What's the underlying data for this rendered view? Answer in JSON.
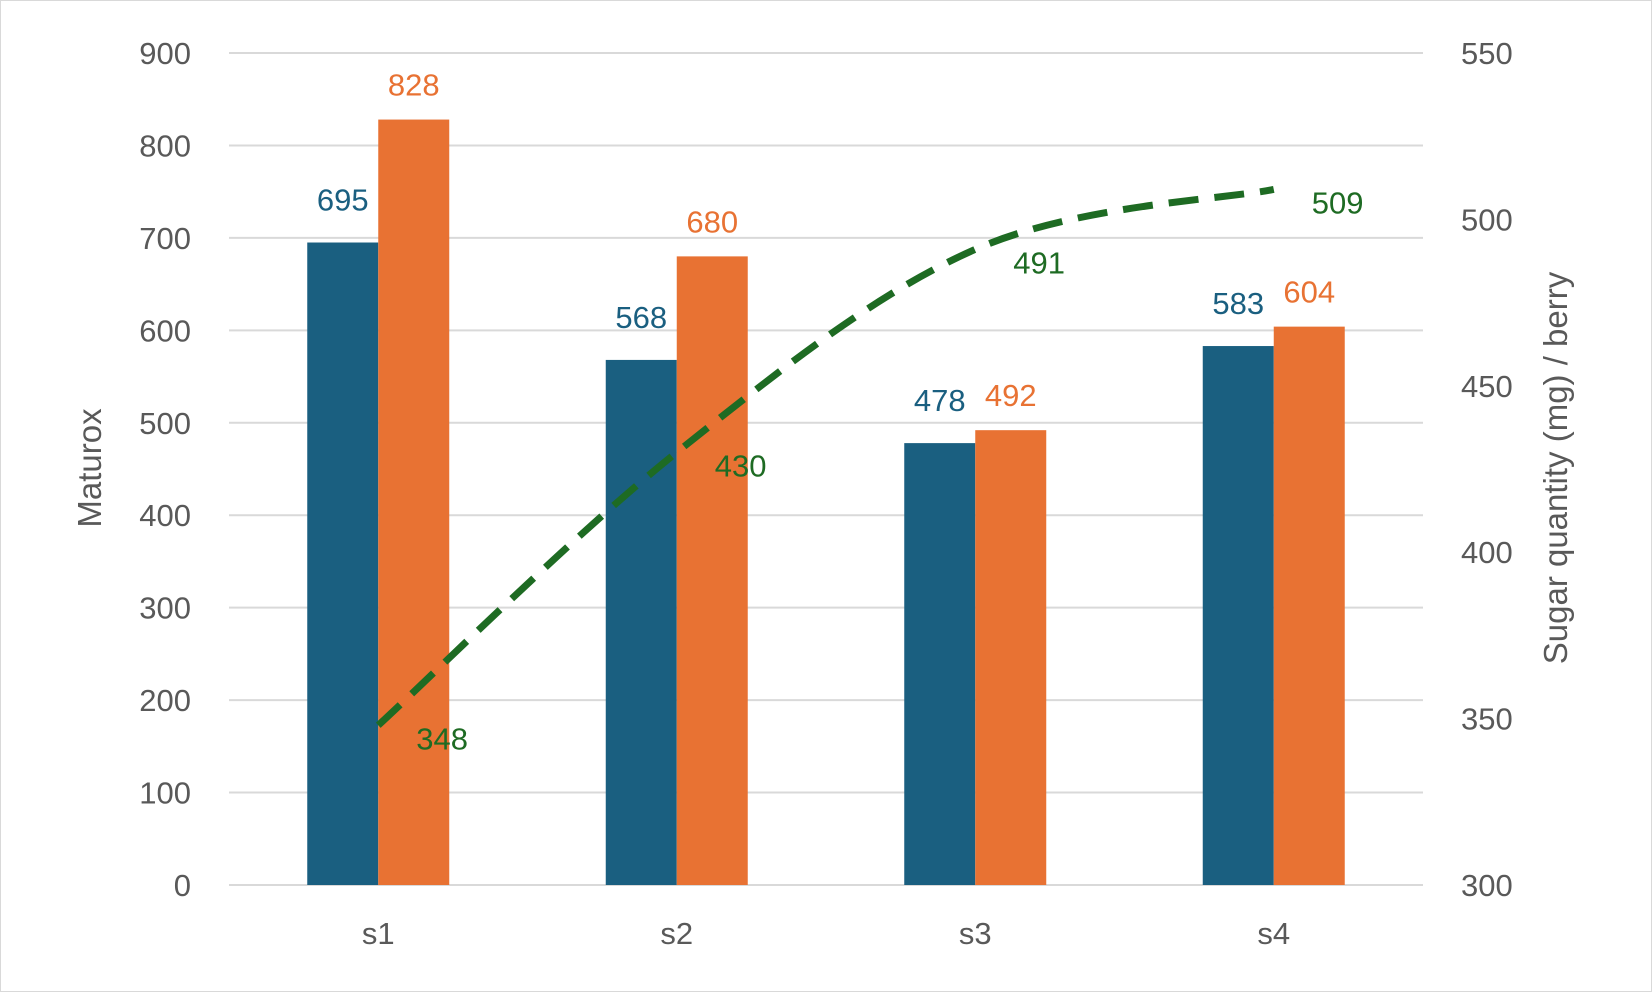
{
  "chart_data": {
    "type": "bar",
    "categories": [
      "s1",
      "s2",
      "s3",
      "s4"
    ],
    "series": [
      {
        "values": [
          695,
          568,
          478,
          583
        ],
        "color": "#1a5f80",
        "axis": "left",
        "kind": "bar"
      },
      {
        "values": [
          828,
          680,
          492,
          604
        ],
        "color": "#e87233",
        "axis": "left",
        "kind": "bar"
      },
      {
        "values": [
          348,
          430,
          491,
          509
        ],
        "color": "#1e6b23",
        "axis": "right",
        "kind": "line",
        "line_style": "dashed"
      }
    ],
    "title": "",
    "xlabel": "",
    "ylabel": "Maturox",
    "ylabel_right": "Sugar quantity (mg) / berry",
    "ylim": [
      0,
      900
    ],
    "yticks": [
      0,
      100,
      200,
      300,
      400,
      500,
      600,
      700,
      800,
      900
    ],
    "ylim_right": [
      300,
      550
    ],
    "yticks_right": [
      300,
      350,
      400,
      450,
      500,
      550
    ],
    "grid": true,
    "legend": "none",
    "data_labels": true
  }
}
